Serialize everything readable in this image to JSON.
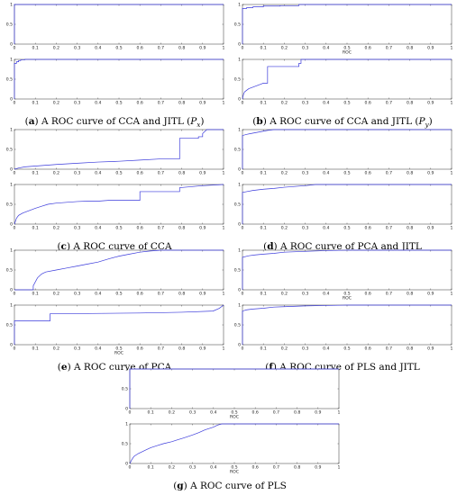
{
  "chart_data": [
    {
      "id": "a",
      "type": "line",
      "caption": {
        "letter": "a",
        "text": "A ROC curve of CCA and JITL (",
        "var": "P",
        "sub": "x",
        "close": ")"
      },
      "color": "#3a3adb",
      "subplots": [
        {
          "xlabel": "",
          "xlim": [
            0,
            1
          ],
          "ylim": [
            0,
            1
          ],
          "xticks": [
            "0",
            "0.1",
            "0.2",
            "0.3",
            "0.4",
            "0.5",
            "0.6",
            "0.7",
            "0.8",
            "0.9",
            "1"
          ],
          "yticks": [
            "0",
            "0.5",
            "1"
          ],
          "series": [
            {
              "x": [
                0,
                0,
                1
              ],
              "y": [
                0,
                1,
                1
              ]
            }
          ]
        },
        {
          "xlabel": "",
          "xlim": [
            0,
            1
          ],
          "ylim": [
            0,
            1
          ],
          "xticks": [
            "0",
            "0.1",
            "0.2",
            "0.3",
            "0.4",
            "0.5",
            "0.6",
            "0.7",
            "0.8",
            "0.9",
            "1"
          ],
          "yticks": [
            "0",
            "0.5",
            "1"
          ],
          "series": [
            {
              "x": [
                0,
                0,
                0.01,
                0.01,
                0.02,
                0.02,
                0.03,
                0.03,
                0.05,
                0.05,
                1
              ],
              "y": [
                0,
                0.9,
                0.9,
                0.94,
                0.94,
                0.97,
                0.97,
                0.99,
                0.99,
                1,
                1
              ]
            }
          ]
        }
      ]
    },
    {
      "id": "b",
      "type": "line",
      "caption": {
        "letter": "b",
        "text": "A ROC curve of CCA and JITL (",
        "var": "P",
        "sub": "y",
        "close": ")"
      },
      "color": "#3a3adb",
      "subplots": [
        {
          "xlabel": "ROC",
          "xlim": [
            0,
            1
          ],
          "ylim": [
            0,
            1
          ],
          "xticks": [
            "0",
            "0.1",
            "0.2",
            "0.3",
            "0.4",
            "0.5",
            "0.6",
            "0.7",
            "0.8",
            "0.9",
            "1"
          ],
          "yticks": [
            "0",
            "0.5",
            "1"
          ],
          "series": [
            {
              "x": [
                0,
                0,
                0.02,
                0.02,
                0.05,
                0.05,
                0.1,
                0.1,
                0.18,
                0.18,
                0.27,
                0.27,
                1
              ],
              "y": [
                0,
                0.9,
                0.9,
                0.92,
                0.92,
                0.94,
                0.94,
                0.96,
                0.96,
                0.97,
                0.97,
                1,
                1
              ]
            }
          ]
        },
        {
          "xlabel": "",
          "xlim": [
            0,
            1
          ],
          "ylim": [
            0,
            1
          ],
          "xticks": [
            "0",
            "0.1",
            "0.2",
            "0.3",
            "0.4",
            "0.5",
            "0.6",
            "0.7",
            "0.8",
            "0.9",
            "1"
          ],
          "yticks": [
            "0",
            "0.5",
            "1"
          ],
          "series": [
            {
              "x": [
                0,
                0.005,
                0.01,
                0.02,
                0.03,
                0.05,
                0.07,
                0.09,
                0.1,
                0.12,
                0.12,
                0.27,
                0.27,
                0.28,
                0.28,
                1
              ],
              "y": [
                0,
                0.12,
                0.18,
                0.22,
                0.26,
                0.3,
                0.34,
                0.38,
                0.4,
                0.4,
                0.82,
                0.82,
                0.9,
                0.9,
                1,
                1
              ]
            }
          ]
        }
      ]
    },
    {
      "id": "c",
      "type": "line",
      "caption": {
        "letter": "c",
        "text": "A ROC curve of CCA"
      },
      "color": "#3a3adb",
      "subplots": [
        {
          "xlabel": "",
          "xlim": [
            0,
            1
          ],
          "ylim": [
            0,
            1
          ],
          "xticks": [
            "0",
            "0.1",
            "0.2",
            "0.3",
            "0.4",
            "0.5",
            "0.6",
            "0.7",
            "0.8",
            "0.9",
            "1"
          ],
          "yticks": [
            "0",
            "0.5",
            "1"
          ],
          "series": [
            {
              "x": [
                0,
                0.02,
                0.05,
                0.1,
                0.15,
                0.2,
                0.3,
                0.4,
                0.5,
                0.6,
                0.7,
                0.79,
                0.79,
                0.88,
                0.88,
                0.9,
                0.9,
                0.92,
                1
              ],
              "y": [
                0,
                0.03,
                0.06,
                0.08,
                0.1,
                0.12,
                0.15,
                0.18,
                0.2,
                0.23,
                0.26,
                0.26,
                0.78,
                0.78,
                0.82,
                0.82,
                0.9,
                1,
                1
              ]
            }
          ]
        },
        {
          "xlabel": "",
          "xlim": [
            0,
            1
          ],
          "ylim": [
            0,
            1
          ],
          "xticks": [
            "0",
            "0.1",
            "0.2",
            "0.3",
            "0.4",
            "0.5",
            "0.6",
            "0.7",
            "0.8",
            "0.9",
            "1"
          ],
          "yticks": [
            "0",
            "0.5",
            "1"
          ],
          "series": [
            {
              "x": [
                0,
                0.01,
                0.02,
                0.04,
                0.06,
                0.08,
                0.1,
                0.13,
                0.16,
                0.2,
                0.25,
                0.3,
                0.35,
                0.4,
                0.45,
                0.5,
                0.6,
                0.6,
                0.79,
                0.79,
                0.9,
                1
              ],
              "y": [
                0,
                0.15,
                0.22,
                0.28,
                0.32,
                0.36,
                0.4,
                0.45,
                0.5,
                0.53,
                0.55,
                0.57,
                0.58,
                0.58,
                0.6,
                0.6,
                0.6,
                0.82,
                0.82,
                0.92,
                0.97,
                1
              ]
            }
          ]
        }
      ]
    },
    {
      "id": "d",
      "type": "line",
      "caption": {
        "letter": "d",
        "text": "A ROC curve of PCA and JITL"
      },
      "color": "#3a3adb",
      "subplots": [
        {
          "xlabel": "",
          "xlim": [
            0,
            1
          ],
          "ylim": [
            0,
            1
          ],
          "xticks": [
            "0",
            "0.1",
            "0.2",
            "0.3",
            "0.4",
            "0.5",
            "0.6",
            "0.7",
            "0.8",
            "0.9",
            "1"
          ],
          "yticks": [
            "0",
            "0.5",
            "1"
          ],
          "series": [
            {
              "x": [
                0,
                0,
                0.02,
                0.04,
                0.06,
                0.08,
                0.1,
                0.12,
                0.15,
                1
              ],
              "y": [
                0,
                0.85,
                0.88,
                0.9,
                0.92,
                0.94,
                0.96,
                0.98,
                1,
                1
              ]
            }
          ]
        },
        {
          "xlabel": "",
          "xlim": [
            0,
            1
          ],
          "ylim": [
            0,
            1
          ],
          "xticks": [
            "0",
            "0.1",
            "0.2",
            "0.3",
            "0.4",
            "0.5",
            "0.6",
            "0.7",
            "0.8",
            "0.9",
            "1"
          ],
          "yticks": [
            "0",
            "0.5",
            "1"
          ],
          "series": [
            {
              "x": [
                0,
                0,
                0.02,
                0.05,
                0.1,
                0.15,
                0.2,
                0.25,
                0.3,
                0.35,
                1
              ],
              "y": [
                0,
                0.8,
                0.82,
                0.85,
                0.88,
                0.9,
                0.93,
                0.95,
                0.97,
                1,
                1
              ]
            }
          ]
        }
      ]
    },
    {
      "id": "e",
      "type": "line",
      "caption": {
        "letter": "e",
        "text": "A ROC curve of PCA"
      },
      "color": "#3a3adb",
      "subplots": [
        {
          "xlabel": "",
          "xlim": [
            0,
            1
          ],
          "ylim": [
            0,
            1
          ],
          "xticks": [
            "0",
            "0.1",
            "0.2",
            "0.3",
            "0.4",
            "0.5",
            "0.6",
            "0.7",
            "0.8",
            "0.9",
            "1"
          ],
          "yticks": [
            "0",
            "0.5",
            "1"
          ],
          "series": [
            {
              "x": [
                0,
                0.09,
                0.09,
                0.11,
                0.13,
                0.15,
                0.2,
                0.25,
                0.3,
                0.35,
                0.4,
                0.45,
                0.5,
                0.55,
                0.6,
                0.65,
                0.7,
                1
              ],
              "y": [
                0,
                0,
                0.1,
                0.3,
                0.4,
                0.45,
                0.5,
                0.55,
                0.6,
                0.65,
                0.7,
                0.78,
                0.85,
                0.9,
                0.95,
                0.98,
                1,
                1
              ]
            }
          ]
        },
        {
          "xlabel": "ROC",
          "xlim": [
            0,
            1
          ],
          "ylim": [
            0,
            1
          ],
          "xticks": [
            "0",
            "0.1",
            "0.2",
            "0.3",
            "0.4",
            "0.5",
            "0.6",
            "0.7",
            "0.8",
            "0.9",
            "1"
          ],
          "yticks": [
            "0",
            "0.5",
            "1"
          ],
          "series": [
            {
              "x": [
                0,
                0,
                0.17,
                0.17,
                0.6,
                0.8,
                0.95,
                0.98,
                1
              ],
              "y": [
                0,
                0.6,
                0.6,
                0.78,
                0.8,
                0.82,
                0.85,
                0.92,
                1
              ]
            }
          ]
        }
      ]
    },
    {
      "id": "f",
      "type": "line",
      "caption": {
        "letter": "f",
        "text": "A ROC curve of PLS and JITL"
      },
      "color": "#3a3adb",
      "subplots": [
        {
          "xlabel": "ROC",
          "xlim": [
            0,
            1
          ],
          "ylim": [
            0,
            1
          ],
          "xticks": [
            "0",
            "0.1",
            "0.2",
            "0.3",
            "0.4",
            "0.5",
            "0.6",
            "0.7",
            "0.8",
            "0.9",
            "1"
          ],
          "yticks": [
            "0",
            "0.5",
            "1"
          ],
          "series": [
            {
              "x": [
                0,
                0,
                0.03,
                0.06,
                0.1,
                0.15,
                0.2,
                0.3,
                0.4,
                0.5,
                0.6,
                1
              ],
              "y": [
                0,
                0.82,
                0.86,
                0.88,
                0.9,
                0.92,
                0.95,
                0.97,
                0.99,
                1,
                1,
                1
              ]
            }
          ]
        },
        {
          "xlabel": "",
          "xlim": [
            0,
            1
          ],
          "ylim": [
            0,
            1
          ],
          "xticks": [
            "0",
            "0.1",
            "0.2",
            "0.3",
            "0.4",
            "0.5",
            "0.6",
            "0.7",
            "0.8",
            "0.9",
            "1"
          ],
          "yticks": [
            "0",
            "0.5",
            "1"
          ],
          "series": [
            {
              "x": [
                0,
                0,
                0.02,
                0.05,
                0.1,
                0.15,
                0.2,
                0.3,
                0.4,
                0.5,
                1
              ],
              "y": [
                0,
                0.85,
                0.88,
                0.9,
                0.92,
                0.95,
                0.96,
                0.98,
                0.99,
                1,
                1
              ]
            }
          ]
        }
      ]
    },
    {
      "id": "g",
      "type": "line",
      "caption": {
        "letter": "g",
        "text": "A ROC curve of PLS"
      },
      "color": "#3a3adb",
      "subplots": [
        {
          "xlabel": "ROC",
          "xlim": [
            0,
            1
          ],
          "ylim": [
            0,
            1
          ],
          "xticks": [
            "0",
            "0.1",
            "0.2",
            "0.3",
            "0.4",
            "0.5",
            "0.6",
            "0.7",
            "0.8",
            "0.9",
            "1"
          ],
          "yticks": [
            "0",
            "0.5",
            "1"
          ],
          "series": [
            {
              "x": [
                0,
                0,
                1
              ],
              "y": [
                0,
                1,
                1
              ]
            }
          ]
        },
        {
          "xlabel": "ROC",
          "xlim": [
            0,
            1
          ],
          "ylim": [
            0,
            1
          ],
          "xticks": [
            "0",
            "0.1",
            "0.2",
            "0.3",
            "0.4",
            "0.5",
            "0.6",
            "0.7",
            "0.8",
            "0.9",
            "1"
          ],
          "yticks": [
            "0",
            "0.5",
            "1"
          ],
          "series": [
            {
              "x": [
                0,
                0.01,
                0.02,
                0.04,
                0.06,
                0.08,
                0.1,
                0.13,
                0.16,
                0.2,
                0.23,
                0.26,
                0.3,
                0.33,
                0.36,
                0.4,
                0.42,
                0.44,
                0.5,
                0.6,
                0.7,
                0.8,
                0.9,
                1
              ],
              "y": [
                0,
                0.1,
                0.18,
                0.25,
                0.3,
                0.35,
                0.4,
                0.45,
                0.5,
                0.55,
                0.6,
                0.65,
                0.72,
                0.78,
                0.85,
                0.92,
                0.97,
                1,
                1,
                1,
                1,
                1,
                1,
                1
              ]
            }
          ]
        }
      ]
    }
  ]
}
